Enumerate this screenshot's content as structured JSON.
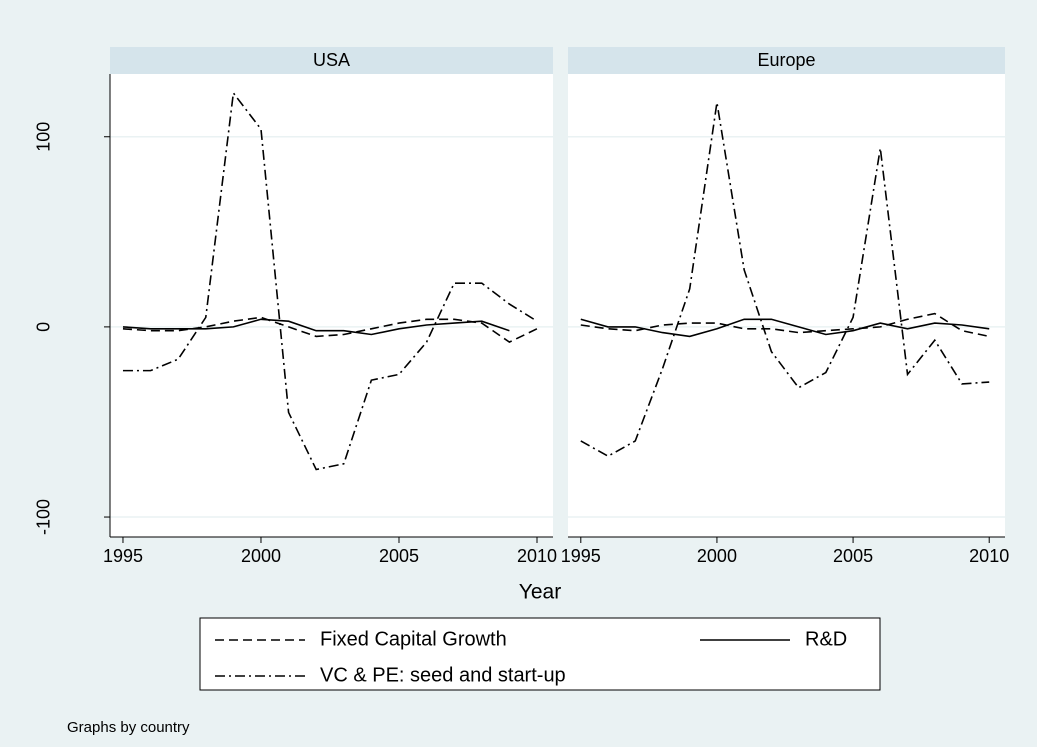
{
  "chart_data": {
    "type": "line",
    "xlabel": "Year",
    "note": "Graphs by country",
    "x": [
      1995,
      1996,
      1997,
      1998,
      1999,
      2000,
      2001,
      2002,
      2003,
      2004,
      2005,
      2006,
      2007,
      2008,
      2009,
      2010
    ],
    "xlim": [
      1994.53,
      2010.58
    ],
    "xticks": [
      1995,
      2000,
      2005,
      2010
    ],
    "ylim": [
      -110.5,
      133
    ],
    "yticks": [
      -100,
      0,
      100
    ],
    "series": [
      {
        "name": "Fixed Capital Growth",
        "color": "#000000",
        "style": "dashed"
      },
      {
        "name": "R&D",
        "color": "#000000",
        "style": "solid"
      },
      {
        "name": "VC & PE: seed and start-up",
        "color": "#000000",
        "style": "dashdot"
      }
    ],
    "panels": [
      {
        "title": "USA",
        "values": [
          [
            -1,
            -2,
            -2,
            0,
            3,
            5,
            0,
            -5,
            -4,
            -1,
            2,
            4,
            4,
            2,
            -8,
            -1
          ],
          [
            0,
            -1,
            -1,
            -1,
            0,
            4,
            3,
            -2,
            -2,
            -4,
            -1,
            1,
            2,
            3,
            -2,
            null
          ],
          [
            -23,
            -23,
            -17,
            5,
            123,
            104,
            -45,
            -75,
            -72,
            -28,
            -25,
            -8,
            23,
            23,
            12,
            3
          ]
        ]
      },
      {
        "title": "Europe",
        "values": [
          [
            1,
            -1,
            -2,
            1,
            2,
            2,
            -1,
            -1,
            -3,
            -2,
            -1,
            0,
            4,
            7,
            -2,
            -5
          ],
          [
            4,
            0,
            0,
            -3,
            -5,
            -1,
            4,
            4,
            0,
            -4,
            -2,
            2,
            -1,
            2,
            1,
            -1
          ],
          [
            -60,
            -68,
            -60,
            -22,
            20,
            118,
            30,
            -13,
            -32,
            -24,
            5,
            94,
            -25,
            -7,
            -30,
            -29
          ]
        ]
      }
    ]
  }
}
